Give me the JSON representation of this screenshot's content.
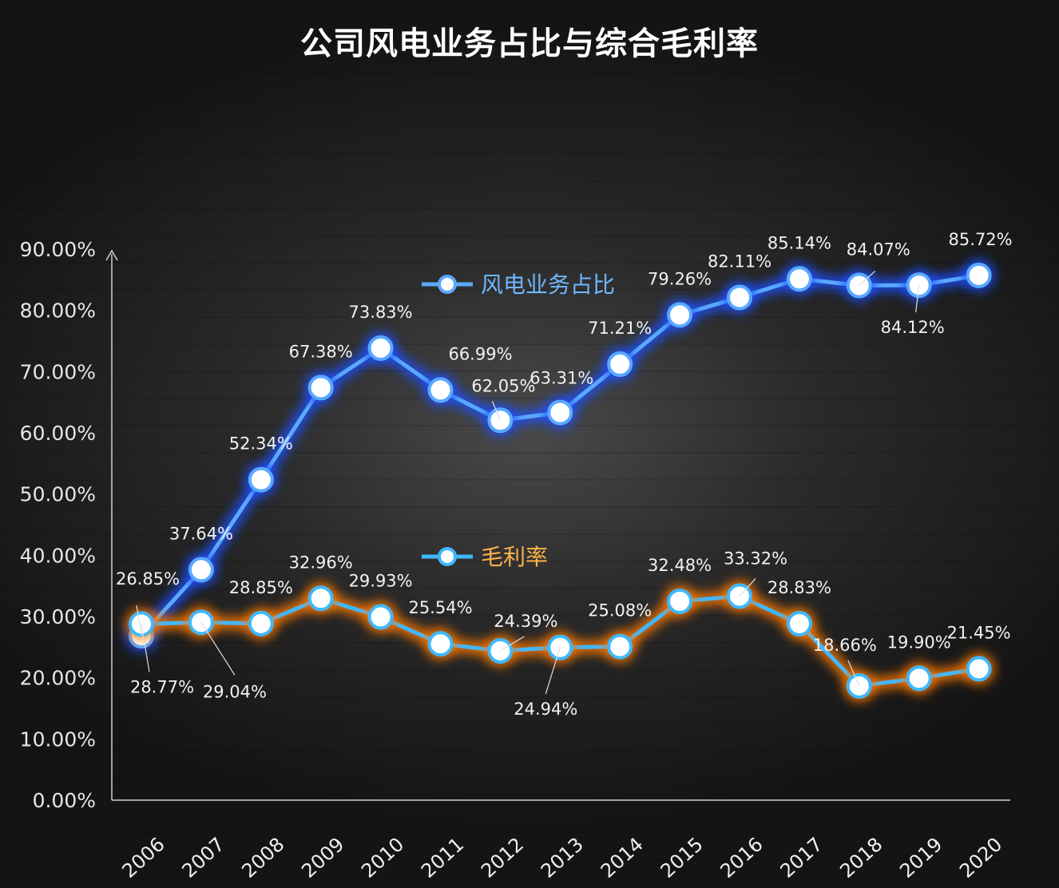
{
  "chart_data": {
    "type": "line",
    "title": "公司风电业务占比与综合毛利率",
    "categories": [
      "2006",
      "2007",
      "2008",
      "2009",
      "2010",
      "2011",
      "2012",
      "2013",
      "2014",
      "2015",
      "2016",
      "2017",
      "2018",
      "2019",
      "2020"
    ],
    "ylim": [
      0,
      90
    ],
    "yticks": [
      "0.00%",
      "10.00%",
      "20.00%",
      "30.00%",
      "40.00%",
      "50.00%",
      "60.00%",
      "70.00%",
      "80.00%",
      "90.00%"
    ],
    "legend_placement": "inside, next to each series",
    "series": [
      {
        "name": "风电业务占比",
        "color": "#5aa9ff",
        "glow": "#1f4fff",
        "values": [
          26.85,
          37.64,
          52.34,
          67.38,
          73.83,
          66.99,
          62.05,
          63.31,
          71.21,
          79.26,
          82.11,
          85.14,
          84.07,
          84.12,
          85.72
        ],
        "labels": [
          "26.85%",
          "37.64%",
          "52.34%",
          "67.38%",
          "73.83%",
          "66.99%",
          "62.05%",
          "63.31%",
          "71.21%",
          "79.26%",
          "82.11%",
          "85.14%",
          "84.07%",
          "84.12%",
          "85.72%"
        ]
      },
      {
        "name": "毛利率",
        "color": "#3fb8ff",
        "glow": "#ff7a00",
        "values": [
          28.77,
          29.04,
          28.85,
          32.96,
          29.93,
          25.54,
          24.39,
          24.94,
          25.08,
          32.48,
          33.32,
          28.83,
          18.66,
          19.9,
          21.45
        ],
        "labels": [
          "28.77%",
          "29.04%",
          "28.85%",
          "32.96%",
          "29.93%",
          "25.54%",
          "24.39%",
          "24.94%",
          "25.08%",
          "32.48%",
          "33.32%",
          "28.83%",
          "18.66%",
          "19.90%",
          "21.45%"
        ]
      }
    ],
    "grid": false
  }
}
